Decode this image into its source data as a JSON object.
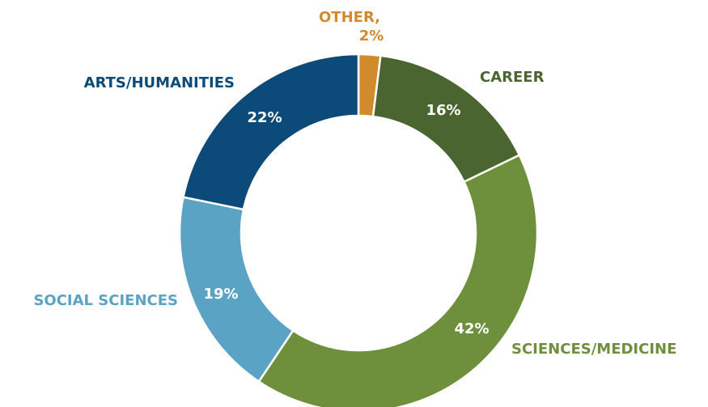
{
  "chart_data": {
    "type": "pie",
    "categories": [
      "OTHER,",
      "CAREER",
      "SCIENCES/MEDICINE",
      "SOCIAL SCIENCES",
      "ARTS/HUMANITIES"
    ],
    "values": [
      2,
      16,
      42,
      19,
      22
    ],
    "value_labels": [
      "2%",
      "16%",
      "42%",
      "19%",
      "22%"
    ],
    "colors": [
      "#d18b2c",
      "#4a6530",
      "#6e8f3c",
      "#5ba3c4",
      "#0c4a7a"
    ]
  }
}
